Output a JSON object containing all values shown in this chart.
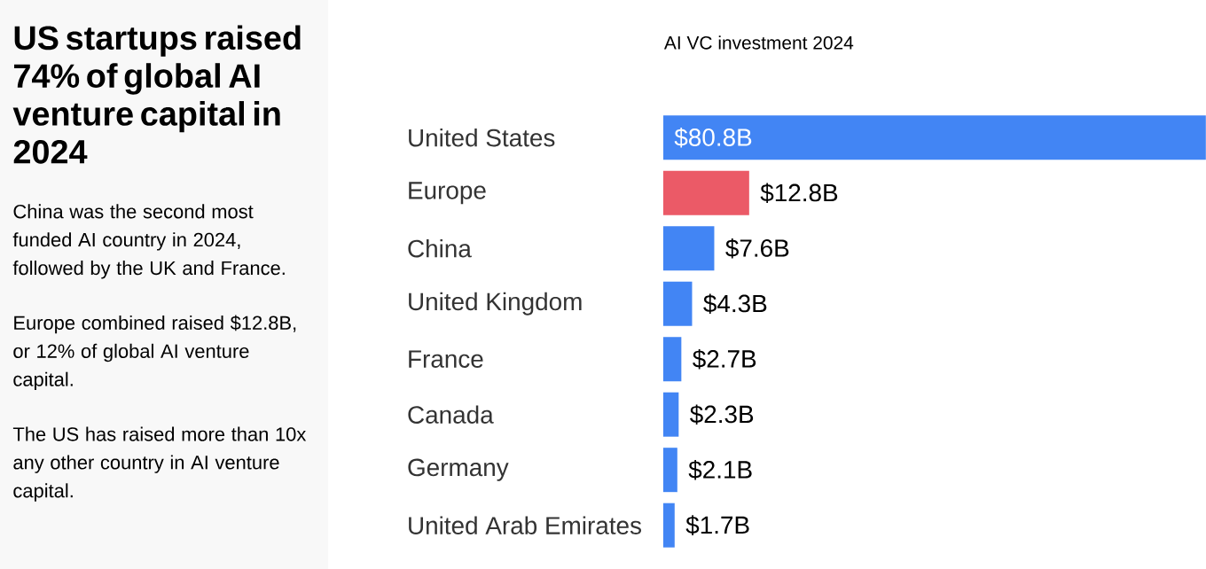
{
  "chart_data": {
    "type": "bar",
    "orientation": "horizontal",
    "title": "AI VC investment 2024",
    "annotations": [
      "US startups raised 74% of global AI venture capital in 2024",
      "China was the second most funded AI country in 2024, followed by the UK and France.",
      "Europe combined raised $12.8B, or 12% of global AI venture capital.",
      "The US has raised more than 10x any other country in AI venture capital."
    ],
    "categories": [
      "United States",
      "Europe",
      "China",
      "United Kingdom",
      "France",
      "Canada",
      "Germany",
      "United Arab Emirates"
    ],
    "values": [
      80.8,
      12.8,
      7.6,
      4.3,
      2.7,
      2.3,
      2.1,
      1.7
    ],
    "value_labels": [
      "$80.8B",
      "$12.8B",
      "$7.6B",
      "$4.3B",
      "$2.7B",
      "$2.3B",
      "$2.1B",
      "$1.7B"
    ],
    "colors": [
      "#4285f4",
      "#eb5a67",
      "#4285f4",
      "#4285f4",
      "#4285f4",
      "#4285f4",
      "#4285f4",
      "#4285f4"
    ],
    "data_labels": false
  }
}
